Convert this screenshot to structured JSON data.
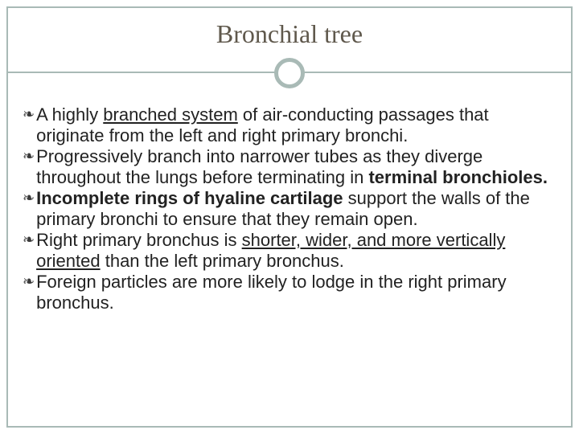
{
  "slide": {
    "title": "Bronchial tree",
    "title_color": "#5f584c",
    "title_fontsize": 32,
    "background_color": "#ffffff",
    "border_color": "#a9bab6",
    "divider_color": "#a9bab6",
    "circle_border_color": "#a9bab6",
    "bullet_marker": "❧",
    "bullet_text_color": "#222222",
    "bullet_fontsize": 22,
    "bullets": [
      {
        "segments": [
          {
            "text": "A highly ",
            "bold": false,
            "underline": false
          },
          {
            "text": "branched system",
            "bold": false,
            "underline": true
          },
          {
            "text": " of air-conducting passages that originate from the left and right primary bronchi.",
            "bold": false,
            "underline": false
          }
        ]
      },
      {
        "segments": [
          {
            "text": "Progressively branch into narrower tubes as they diverge throughout the lungs before terminating in ",
            "bold": false,
            "underline": false
          },
          {
            "text": "terminal bronchioles.",
            "bold": true,
            "underline": false
          }
        ]
      },
      {
        "segments": [
          {
            "text": "Incomplete rings of hyaline cartilage",
            "bold": true,
            "underline": false
          },
          {
            "text": " support the walls of the primary bronchi to ensure that they remain open.",
            "bold": false,
            "underline": false
          }
        ]
      },
      {
        "segments": [
          {
            "text": "Right primary bronchus is ",
            "bold": false,
            "underline": false
          },
          {
            "text": "shorter, wider, and more vertically oriented",
            "bold": false,
            "underline": true
          },
          {
            "text": " than the left primary bronchus.",
            "bold": false,
            "underline": false
          }
        ]
      },
      {
        "segments": [
          {
            "text": "Foreign particles are more likely to lodge in the right primary bronchus.",
            "bold": false,
            "underline": false
          }
        ]
      }
    ]
  }
}
